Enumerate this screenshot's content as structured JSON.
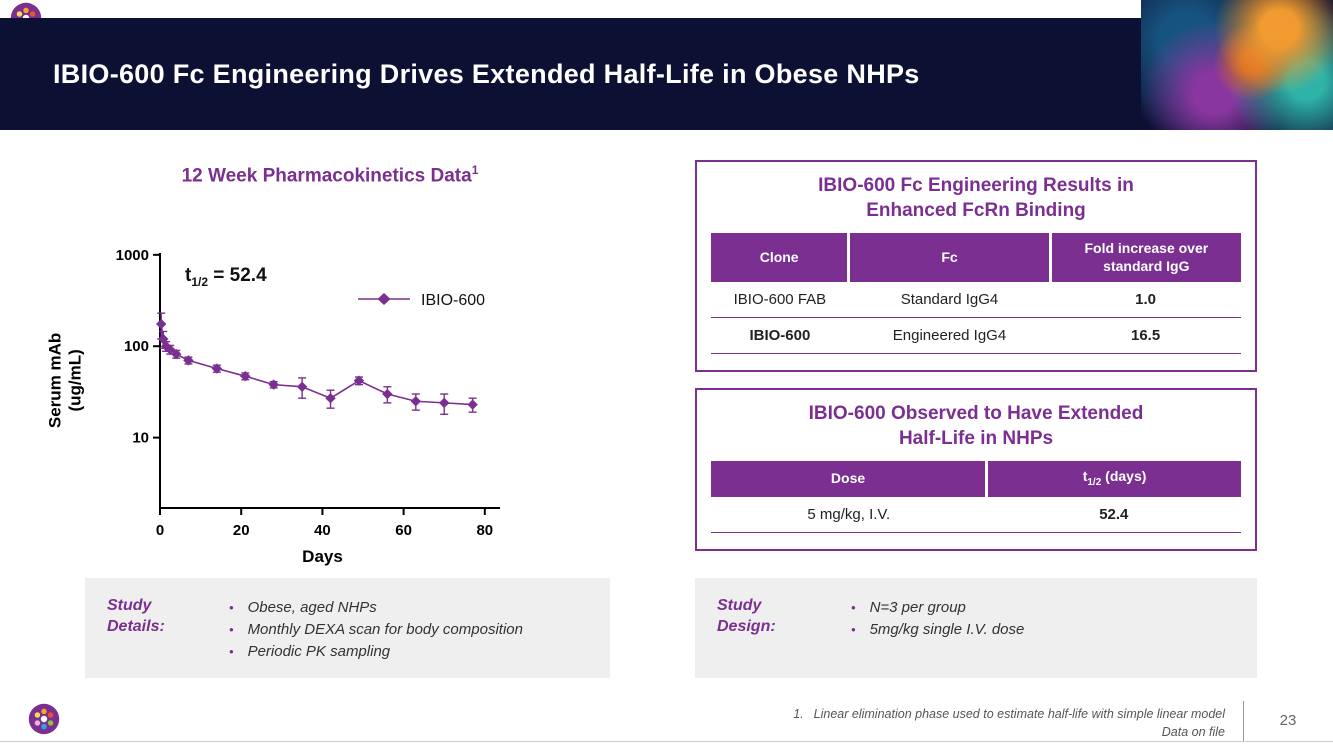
{
  "header": {
    "title": "IBIO-600 Fc Engineering Drives Extended Half-Life in Obese NHPs"
  },
  "pk": {
    "title": "12 Week Pharmacokinetics Data",
    "title_sup": "1",
    "half_life": {
      "prefix": "t",
      "sub": "1/2",
      "rest": " = 52.4"
    },
    "ylabel_line1": "Serum mAb",
    "ylabel_line2": "(ug/mL)"
  },
  "chart_data": {
    "type": "line",
    "title": "12 Week Pharmacokinetics Data",
    "xlabel": "Days",
    "ylabel": "Serum mAb (ug/mL)",
    "y_scale": "log",
    "x_ticks": [
      0,
      20,
      40,
      60,
      80
    ],
    "y_ticks": [
      1000,
      100,
      10
    ],
    "xlim": [
      0,
      83
    ],
    "ylim_log": [
      0.23,
      3.02
    ],
    "color": "#7b2f90",
    "annotation": "t1/2 = 52.4",
    "legend_position": "top-right-inside",
    "series": [
      {
        "name": "IBIO-600",
        "x": [
          0.3,
          0.8,
          1.5,
          2.5,
          4,
          7,
          14,
          21,
          28,
          35,
          42,
          49,
          56,
          63,
          70,
          77
        ],
        "y": [
          175,
          120,
          100,
          92,
          82,
          70,
          57,
          47,
          38,
          36,
          27,
          42,
          30,
          25,
          24,
          23
        ],
        "yerr": [
          55,
          25,
          12,
          10,
          8,
          6,
          5,
          4,
          3,
          9,
          6,
          4,
          6,
          5,
          6,
          4
        ]
      }
    ]
  },
  "study_details": {
    "label": "Study Details:",
    "bullets": [
      "Obese, aged NHPs",
      "Monthly DEXA scan for body composition",
      "Periodic PK sampling"
    ]
  },
  "fcrn_table": {
    "title_line1": "IBIO-600 Fc Engineering Results in",
    "title_line2": "Enhanced FcRn Binding",
    "headers": [
      "Clone",
      "Fc",
      "Fold increase over standard IgG"
    ],
    "rows": [
      {
        "clone": "IBIO-600 FAB",
        "fc": "Standard IgG4",
        "fold": "1.0"
      },
      {
        "clone": "IBIO-600",
        "fc": "Engineered IgG4",
        "fold": "16.5"
      }
    ]
  },
  "half_life_table": {
    "title_line1": "IBIO-600 Observed to Have Extended",
    "title_line2": "Half-Life in NHPs",
    "header_dose": "Dose",
    "header_t": {
      "prefix": "t",
      "sub": "1/2",
      "rest": " (days)"
    },
    "rows": [
      {
        "dose": "5 mg/kg, I.V.",
        "value": "52.4"
      }
    ]
  },
  "study_design": {
    "label": "Study Design:",
    "bullets": [
      "N=3 per group",
      "5mg/kg single I.V. dose"
    ]
  },
  "footer": {
    "footnote_number": "1.",
    "footnote_text": "Linear elimination phase used to estimate half-life with simple linear model",
    "footnote_line2": "Data on file",
    "page_number": "23"
  }
}
